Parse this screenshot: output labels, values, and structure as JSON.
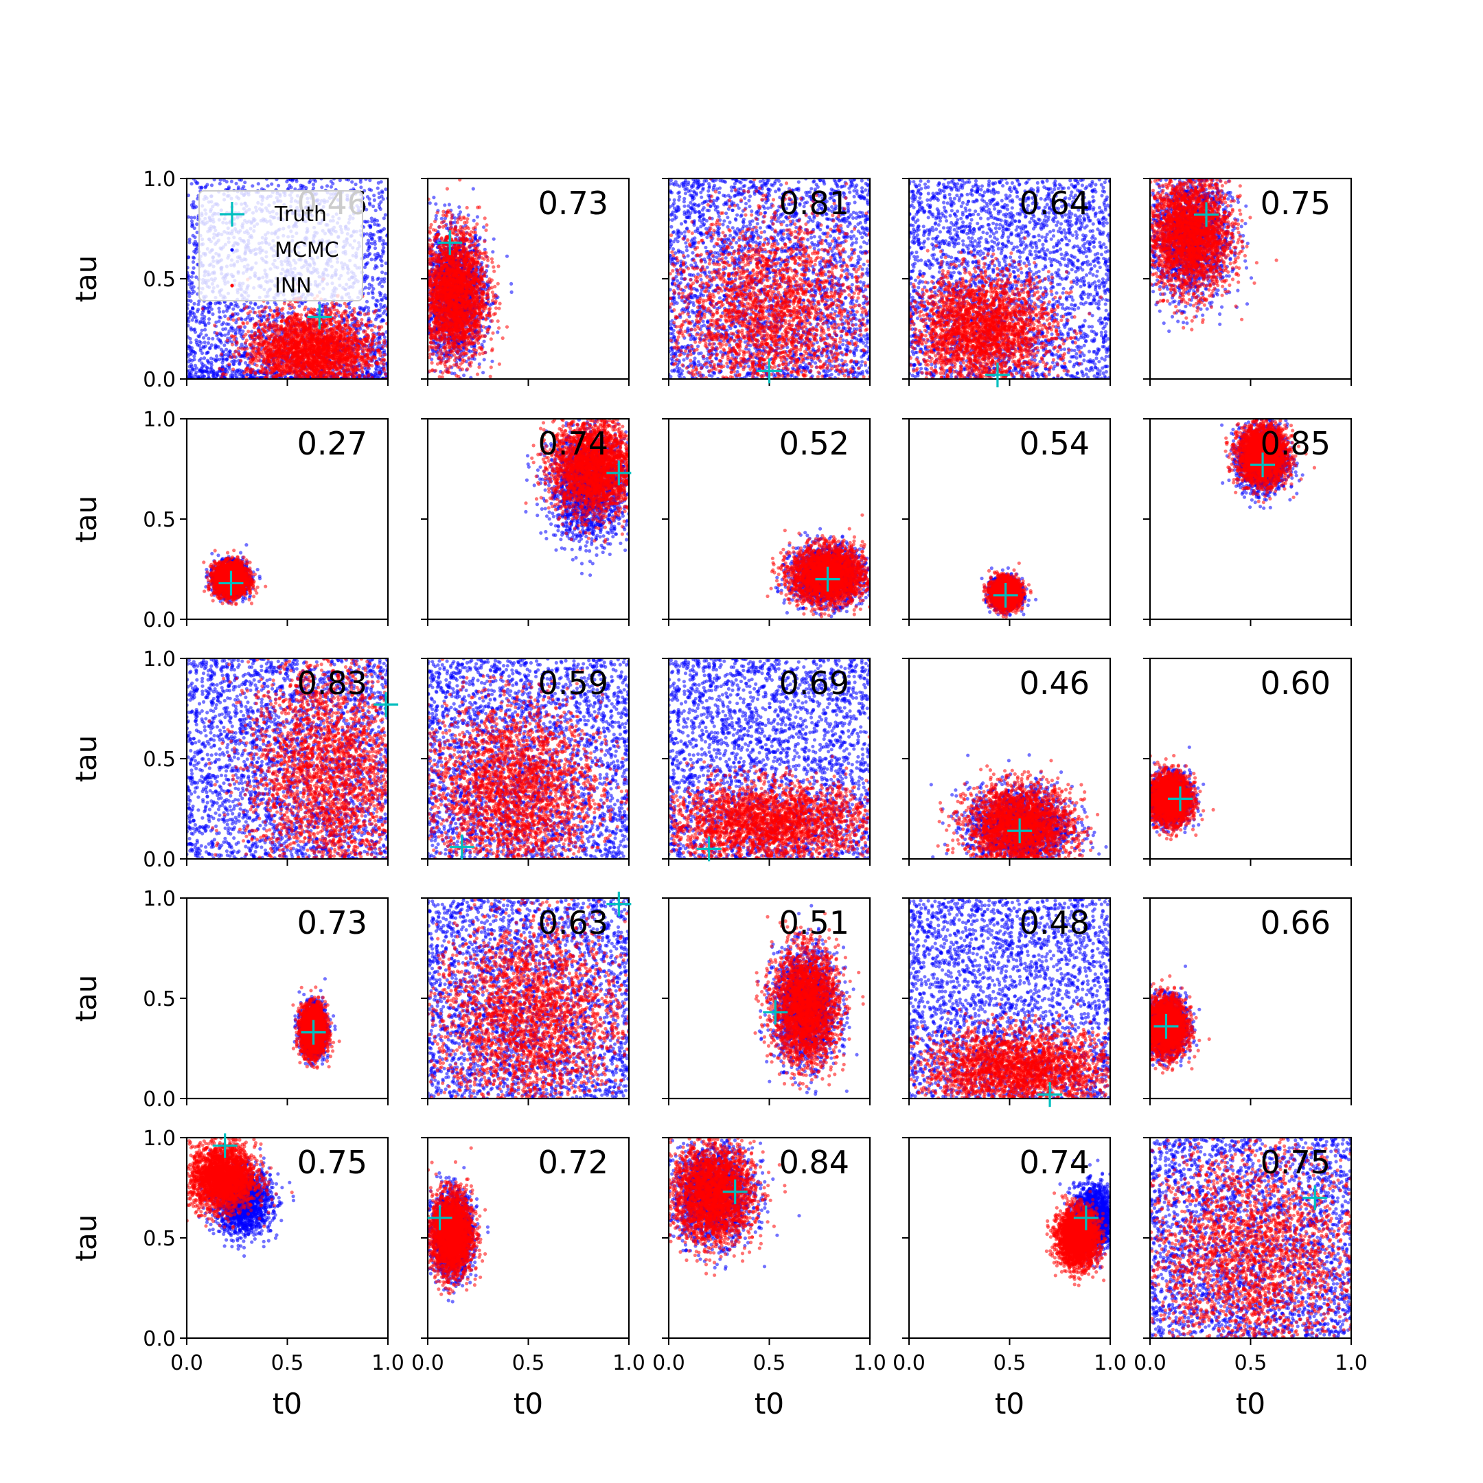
{
  "figure": {
    "x_axis_label": "t0",
    "y_axis_label": "tau",
    "x_tick_labels": [
      "0.0",
      "0.5",
      "1.0"
    ],
    "y_tick_labels": [
      "0.0",
      "0.5",
      "1.0"
    ]
  },
  "legend": {
    "placement": "upper-left of first panel",
    "entries": [
      {
        "label": "Truth",
        "marker": "cross",
        "color": "#00bfbf"
      },
      {
        "label": "MCMC",
        "marker": "dot",
        "color": "#0000ff"
      },
      {
        "label": "INN",
        "marker": "dot",
        "color": "#ff0000"
      }
    ]
  },
  "colors": {
    "truth": "#00bfbf",
    "mcmc": "#0000ff",
    "inn": "#ff0000"
  },
  "chart_data": {
    "type": "scatter",
    "rows": 5,
    "cols": 5,
    "xlim": [
      0,
      1
    ],
    "ylim": [
      0,
      1
    ],
    "xlabel": "t0",
    "ylabel": "tau",
    "series_names": [
      "Truth",
      "MCMC",
      "INN"
    ],
    "panels": [
      {
        "row": 0,
        "col": 0,
        "score": "0.46",
        "truth": [
          0.66,
          0.31
        ],
        "mcmc": {
          "center": [
            0.6,
            0.2
          ],
          "spread": [
            0.5,
            0.6
          ],
          "shape": "uniform-low"
        },
        "inn": {
          "center": [
            0.62,
            0.14
          ],
          "spread": [
            0.16,
            0.1
          ]
        }
      },
      {
        "row": 0,
        "col": 1,
        "score": "0.73",
        "truth": [
          0.11,
          0.68
        ],
        "mcmc": {
          "center": [
            0.13,
            0.42
          ],
          "spread": [
            0.08,
            0.16
          ]
        },
        "inn": {
          "center": [
            0.13,
            0.42
          ],
          "spread": [
            0.08,
            0.16
          ]
        }
      },
      {
        "row": 0,
        "col": 2,
        "score": "0.81",
        "truth": [
          0.5,
          0.04
        ],
        "mcmc": {
          "center": [
            0.5,
            0.5
          ],
          "spread": [
            1.0,
            1.0
          ],
          "shape": "uniform"
        },
        "inn": {
          "center": [
            0.5,
            0.32
          ],
          "spread": [
            0.26,
            0.24
          ]
        }
      },
      {
        "row": 0,
        "col": 3,
        "score": "0.64",
        "truth": [
          0.44,
          0.02
        ],
        "mcmc": {
          "center": [
            0.5,
            0.5
          ],
          "spread": [
            1.0,
            1.0
          ],
          "shape": "uniform"
        },
        "inn": {
          "center": [
            0.36,
            0.24
          ],
          "spread": [
            0.18,
            0.14
          ]
        }
      },
      {
        "row": 0,
        "col": 4,
        "score": "0.75",
        "truth": [
          0.28,
          0.82
        ],
        "mcmc": {
          "center": [
            0.2,
            0.72
          ],
          "spread": [
            0.1,
            0.16
          ]
        },
        "inn": {
          "center": [
            0.2,
            0.72
          ],
          "spread": [
            0.1,
            0.14
          ]
        }
      },
      {
        "row": 1,
        "col": 0,
        "score": "0.27",
        "truth": [
          0.22,
          0.18
        ],
        "mcmc": {
          "center": [
            0.22,
            0.2
          ],
          "spread": [
            0.04,
            0.04
          ]
        },
        "inn": {
          "center": [
            0.22,
            0.2
          ],
          "spread": [
            0.04,
            0.04
          ]
        }
      },
      {
        "row": 1,
        "col": 1,
        "score": "0.74",
        "truth": [
          0.95,
          0.73
        ],
        "mcmc": {
          "center": [
            0.8,
            0.66
          ],
          "spread": [
            0.1,
            0.13
          ]
        },
        "inn": {
          "center": [
            0.82,
            0.76
          ],
          "spread": [
            0.1,
            0.12
          ]
        }
      },
      {
        "row": 1,
        "col": 2,
        "score": "0.52",
        "truth": [
          0.79,
          0.2
        ],
        "mcmc": {
          "center": [
            0.79,
            0.22
          ],
          "spread": [
            0.09,
            0.07
          ]
        },
        "inn": {
          "center": [
            0.79,
            0.22
          ],
          "spread": [
            0.09,
            0.07
          ]
        }
      },
      {
        "row": 1,
        "col": 3,
        "score": "0.54",
        "truth": [
          0.48,
          0.12
        ],
        "mcmc": {
          "center": [
            0.48,
            0.13
          ],
          "spread": [
            0.035,
            0.035
          ]
        },
        "inn": {
          "center": [
            0.48,
            0.13
          ],
          "spread": [
            0.035,
            0.035
          ]
        }
      },
      {
        "row": 1,
        "col": 4,
        "score": "0.85",
        "truth": [
          0.56,
          0.77
        ],
        "mcmc": {
          "center": [
            0.56,
            0.8
          ],
          "spread": [
            0.06,
            0.08
          ]
        },
        "inn": {
          "center": [
            0.56,
            0.82
          ],
          "spread": [
            0.06,
            0.07
          ]
        }
      },
      {
        "row": 2,
        "col": 0,
        "score": "0.83",
        "truth": [
          0.99,
          0.77
        ],
        "mcmc": {
          "center": [
            0.5,
            0.5
          ],
          "spread": [
            1.0,
            1.0
          ],
          "shape": "uniform"
        },
        "inn": {
          "center": [
            0.7,
            0.42
          ],
          "spread": [
            0.2,
            0.3
          ]
        }
      },
      {
        "row": 2,
        "col": 1,
        "score": "0.59",
        "truth": [
          0.17,
          0.06
        ],
        "mcmc": {
          "center": [
            0.5,
            0.5
          ],
          "spread": [
            1.0,
            1.0
          ],
          "shape": "uniform"
        },
        "inn": {
          "center": [
            0.42,
            0.34
          ],
          "spread": [
            0.22,
            0.22
          ]
        }
      },
      {
        "row": 2,
        "col": 2,
        "score": "0.69",
        "truth": [
          0.2,
          0.05
        ],
        "mcmc": {
          "center": [
            0.5,
            0.5
          ],
          "spread": [
            1.0,
            1.0
          ],
          "shape": "uniform"
        },
        "inn": {
          "center": [
            0.5,
            0.18
          ],
          "spread": [
            0.26,
            0.1
          ]
        }
      },
      {
        "row": 2,
        "col": 3,
        "score": "0.46",
        "truth": [
          0.55,
          0.14
        ],
        "mcmc": {
          "center": [
            0.55,
            0.16
          ],
          "spread": [
            0.13,
            0.1
          ]
        },
        "inn": {
          "center": [
            0.55,
            0.16
          ],
          "spread": [
            0.13,
            0.1
          ]
        }
      },
      {
        "row": 2,
        "col": 4,
        "score": "0.60",
        "truth": [
          0.15,
          0.3
        ],
        "mcmc": {
          "center": [
            0.1,
            0.3
          ],
          "spread": [
            0.05,
            0.06
          ]
        },
        "inn": {
          "center": [
            0.1,
            0.3
          ],
          "spread": [
            0.05,
            0.06
          ]
        }
      },
      {
        "row": 3,
        "col": 0,
        "score": "0.73",
        "truth": [
          0.63,
          0.33
        ],
        "mcmc": {
          "center": [
            0.63,
            0.34
          ],
          "spread": [
            0.03,
            0.06
          ]
        },
        "inn": {
          "center": [
            0.63,
            0.34
          ],
          "spread": [
            0.03,
            0.06
          ]
        }
      },
      {
        "row": 3,
        "col": 1,
        "score": "0.63",
        "truth": [
          0.95,
          0.97
        ],
        "mcmc": {
          "center": [
            0.5,
            0.5
          ],
          "spread": [
            1.0,
            1.0
          ],
          "shape": "uniform"
        },
        "inn": {
          "center": [
            0.5,
            0.4
          ],
          "spread": [
            0.24,
            0.24
          ]
        }
      },
      {
        "row": 3,
        "col": 2,
        "score": "0.51",
        "truth": [
          0.53,
          0.43
        ],
        "mcmc": {
          "center": [
            0.68,
            0.46
          ],
          "spread": [
            0.08,
            0.14
          ]
        },
        "inn": {
          "center": [
            0.68,
            0.46
          ],
          "spread": [
            0.08,
            0.14
          ]
        }
      },
      {
        "row": 3,
        "col": 3,
        "score": "0.48",
        "truth": [
          0.7,
          0.02
        ],
        "mcmc": {
          "center": [
            0.5,
            0.5
          ],
          "spread": [
            1.0,
            1.0
          ],
          "shape": "uniform"
        },
        "inn": {
          "center": [
            0.55,
            0.14
          ],
          "spread": [
            0.24,
            0.1
          ]
        }
      },
      {
        "row": 3,
        "col": 4,
        "score": "0.66",
        "truth": [
          0.08,
          0.36
        ],
        "mcmc": {
          "center": [
            0.08,
            0.36
          ],
          "spread": [
            0.05,
            0.07
          ]
        },
        "inn": {
          "center": [
            0.08,
            0.36
          ],
          "spread": [
            0.05,
            0.07
          ]
        }
      },
      {
        "row": 4,
        "col": 0,
        "score": "0.75",
        "truth": [
          0.19,
          0.96
        ],
        "mcmc": {
          "center": [
            0.28,
            0.68
          ],
          "spread": [
            0.07,
            0.08
          ]
        },
        "inn": {
          "center": [
            0.18,
            0.8
          ],
          "spread": [
            0.08,
            0.08
          ]
        }
      },
      {
        "row": 4,
        "col": 1,
        "score": "0.72",
        "truth": [
          0.06,
          0.6
        ],
        "mcmc": {
          "center": [
            0.12,
            0.52
          ],
          "spread": [
            0.05,
            0.1
          ]
        },
        "inn": {
          "center": [
            0.12,
            0.52
          ],
          "spread": [
            0.05,
            0.1
          ]
        }
      },
      {
        "row": 4,
        "col": 2,
        "score": "0.84",
        "truth": [
          0.33,
          0.73
        ],
        "mcmc": {
          "center": [
            0.22,
            0.72
          ],
          "spread": [
            0.1,
            0.12
          ]
        },
        "inn": {
          "center": [
            0.22,
            0.72
          ],
          "spread": [
            0.1,
            0.12
          ]
        }
      },
      {
        "row": 4,
        "col": 3,
        "score": "0.74",
        "truth": [
          0.88,
          0.6
        ],
        "mcmc": {
          "center": [
            0.92,
            0.6
          ],
          "spread": [
            0.05,
            0.08
          ]
        },
        "inn": {
          "center": [
            0.84,
            0.5
          ],
          "spread": [
            0.05,
            0.07
          ]
        }
      },
      {
        "row": 4,
        "col": 4,
        "score": "0.75",
        "truth": [
          0.82,
          0.7
        ],
        "mcmc": {
          "center": [
            0.5,
            0.5
          ],
          "spread": [
            1.0,
            1.0
          ],
          "shape": "uniform"
        },
        "inn": {
          "center": [
            0.5,
            0.4
          ],
          "spread": [
            0.28,
            0.28
          ]
        }
      }
    ]
  }
}
